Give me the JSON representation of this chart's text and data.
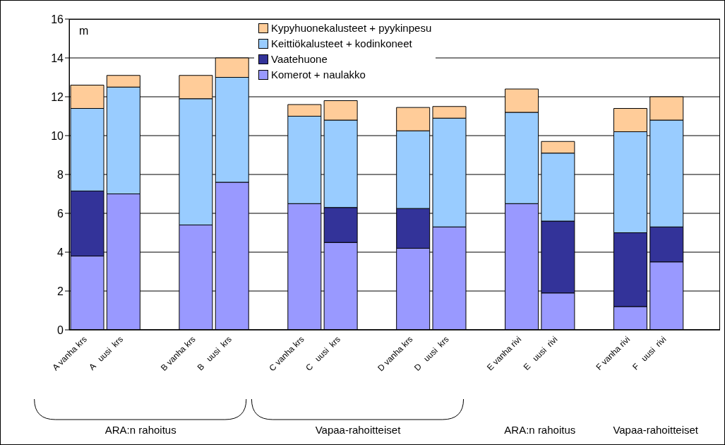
{
  "chart_data": {
    "type": "bar",
    "stacked": true,
    "ylabel": "m",
    "categories": [
      "A vanha krs",
      "A   uusi  krs",
      null,
      "B vanha krs",
      "B   uusi  krs",
      null,
      "C vanha krs",
      "C   uusi  krs",
      null,
      "D vanha krs",
      "D   uusi  krs",
      null,
      "E vanha rivi",
      "E   uusi  rivi",
      null,
      "F vanha rivi",
      "F   uusi  rivi"
    ],
    "series": [
      {
        "name": "Komerot + naulakko",
        "color": "#9999ff",
        "values": [
          3.8,
          7.0,
          null,
          5.4,
          7.6,
          null,
          6.5,
          4.5,
          null,
          4.2,
          5.3,
          null,
          6.5,
          1.9,
          null,
          1.2,
          3.5
        ]
      },
      {
        "name": "Vaatehuone",
        "color": "#333399",
        "values": [
          3.35,
          0,
          null,
          0,
          0,
          null,
          0,
          1.8,
          null,
          2.05,
          0,
          null,
          0,
          3.7,
          null,
          3.8,
          1.8
        ]
      },
      {
        "name": "Keittiökalusteet + kodinkoneet",
        "color": "#99ccff",
        "values": [
          4.25,
          5.5,
          null,
          6.5,
          5.4,
          null,
          4.5,
          4.5,
          null,
          4.0,
          5.6,
          null,
          4.7,
          3.5,
          null,
          5.2,
          5.5
        ]
      },
      {
        "name": "Kypyhuonekalusteet + pyykinpesu",
        "color": "#ffcc99",
        "values": [
          1.2,
          0.6,
          null,
          1.2,
          1.0,
          null,
          0.6,
          1.0,
          null,
          1.2,
          0.6,
          null,
          1.2,
          0.6,
          null,
          1.2,
          1.2
        ]
      }
    ],
    "ylim": [
      0,
      16
    ],
    "yticks": [
      0,
      2,
      4,
      6,
      8,
      10,
      12,
      14,
      16
    ],
    "grid": "y",
    "legend": "top",
    "annotations": [
      "ARA:n rahoitus",
      "Vapaa-rahoitteiset",
      "ARA:n rahoitus",
      "Vapaa-rahoitteiset"
    ]
  }
}
